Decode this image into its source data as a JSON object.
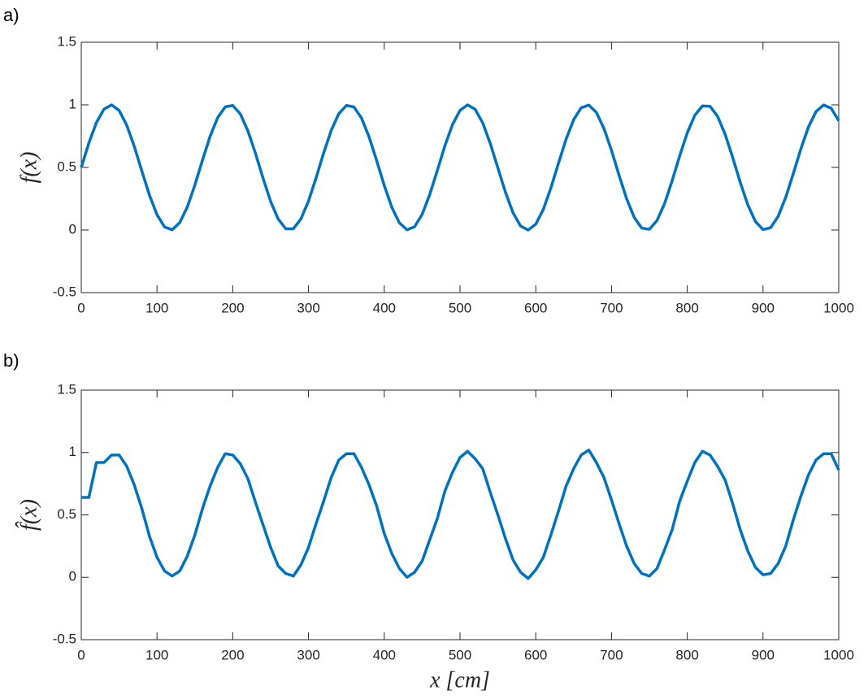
{
  "chart_data": [
    {
      "type": "line",
      "label": "a)",
      "ylabel": "f(x)",
      "color": "#0072bd",
      "xlim": [
        0,
        1000
      ],
      "ylim": [
        -0.5,
        1.5
      ],
      "xticks": [
        0,
        100,
        200,
        300,
        400,
        500,
        600,
        700,
        800,
        900,
        1000
      ],
      "yticks": [
        -0.5,
        0,
        0.5,
        1,
        1.5
      ],
      "x": [
        0,
        10,
        20,
        30,
        40,
        50,
        60,
        70,
        80,
        90,
        100,
        110,
        120,
        130,
        140,
        150,
        160,
        170,
        180,
        190,
        200,
        210,
        220,
        230,
        240,
        250,
        260,
        270,
        280,
        290,
        300,
        310,
        320,
        330,
        340,
        350,
        360,
        370,
        380,
        390,
        400,
        410,
        420,
        430,
        440,
        450,
        460,
        470,
        480,
        490,
        500,
        510,
        520,
        530,
        540,
        550,
        560,
        570,
        580,
        590,
        600,
        610,
        620,
        630,
        640,
        650,
        660,
        670,
        680,
        690,
        700,
        710,
        720,
        730,
        740,
        750,
        760,
        770,
        780,
        790,
        800,
        810,
        820,
        830,
        840,
        850,
        860,
        870,
        880,
        890,
        900,
        910,
        920,
        930,
        940,
        950,
        960,
        970,
        980,
        990,
        1000
      ],
      "values": [
        0.5,
        0.695,
        0.859,
        0.966,
        1.0,
        0.955,
        0.838,
        0.667,
        0.471,
        0.279,
        0.122,
        0.024,
        0.002,
        0.059,
        0.184,
        0.36,
        0.558,
        0.747,
        0.897,
        0.984,
        0.995,
        0.927,
        0.792,
        0.612,
        0.413,
        0.228,
        0.087,
        0.01,
        0.01,
        0.089,
        0.232,
        0.417,
        0.616,
        0.796,
        0.93,
        0.995,
        0.983,
        0.894,
        0.743,
        0.554,
        0.356,
        0.181,
        0.057,
        0.002,
        0.026,
        0.125,
        0.283,
        0.475,
        0.672,
        0.841,
        0.956,
        1.0,
        0.964,
        0.856,
        0.691,
        0.496,
        0.301,
        0.138,
        0.032,
        0.0,
        0.047,
        0.165,
        0.337,
        0.534,
        0.725,
        0.881,
        0.977,
        0.998,
        0.94,
        0.812,
        0.636,
        0.437,
        0.249,
        0.101,
        0.015,
        0.006,
        0.075,
        0.21,
        0.393,
        0.592,
        0.776,
        0.917,
        0.991,
        0.989,
        0.909,
        0.765,
        0.579,
        0.38,
        0.201,
        0.068,
        0.004,
        0.018,
        0.109,
        0.261,
        0.451,
        0.648,
        0.823,
        0.946,
        0.999,
        0.973,
        0.873
      ]
    },
    {
      "type": "line",
      "label": "b)",
      "ylabel": "f̂(x)",
      "xlabel": "x [cm]",
      "color": "#0072bd",
      "xlim": [
        0,
        1000
      ],
      "ylim": [
        -0.5,
        1.5
      ],
      "xticks": [
        0,
        100,
        200,
        300,
        400,
        500,
        600,
        700,
        800,
        900,
        1000
      ],
      "yticks": [
        -0.5,
        0,
        0.5,
        1,
        1.5
      ],
      "x": [
        0,
        10,
        20,
        30,
        40,
        50,
        60,
        70,
        80,
        90,
        100,
        110,
        120,
        130,
        140,
        150,
        160,
        170,
        180,
        190,
        200,
        210,
        220,
        230,
        240,
        250,
        260,
        270,
        280,
        290,
        300,
        310,
        320,
        330,
        340,
        350,
        360,
        370,
        380,
        390,
        400,
        410,
        420,
        430,
        440,
        450,
        460,
        470,
        480,
        490,
        500,
        510,
        520,
        530,
        540,
        550,
        560,
        570,
        580,
        590,
        600,
        610,
        620,
        630,
        640,
        650,
        660,
        670,
        680,
        690,
        700,
        710,
        720,
        730,
        740,
        750,
        760,
        770,
        780,
        790,
        800,
        810,
        820,
        830,
        840,
        850,
        860,
        870,
        880,
        890,
        900,
        910,
        920,
        930,
        940,
        950,
        960,
        970,
        980,
        990,
        1000
      ],
      "values": [
        0.64,
        0.64,
        0.92,
        0.92,
        0.98,
        0.98,
        0.89,
        0.74,
        0.55,
        0.33,
        0.16,
        0.05,
        0.01,
        0.05,
        0.17,
        0.34,
        0.55,
        0.73,
        0.88,
        0.99,
        0.98,
        0.91,
        0.79,
        0.6,
        0.42,
        0.24,
        0.09,
        0.03,
        0.01,
        0.1,
        0.24,
        0.43,
        0.61,
        0.8,
        0.94,
        0.99,
        0.99,
        0.88,
        0.74,
        0.57,
        0.35,
        0.19,
        0.07,
        0.0,
        0.04,
        0.13,
        0.3,
        0.47,
        0.69,
        0.84,
        0.96,
        1.01,
        0.95,
        0.87,
        0.68,
        0.5,
        0.31,
        0.14,
        0.04,
        -0.01,
        0.06,
        0.16,
        0.34,
        0.53,
        0.73,
        0.87,
        0.98,
        1.02,
        0.92,
        0.8,
        0.62,
        0.43,
        0.25,
        0.11,
        0.03,
        0.01,
        0.07,
        0.22,
        0.38,
        0.61,
        0.77,
        0.92,
        1.01,
        0.98,
        0.89,
        0.78,
        0.59,
        0.38,
        0.21,
        0.08,
        0.02,
        0.03,
        0.11,
        0.25,
        0.46,
        0.65,
        0.82,
        0.94,
        0.99,
        0.99,
        0.86
      ]
    }
  ]
}
